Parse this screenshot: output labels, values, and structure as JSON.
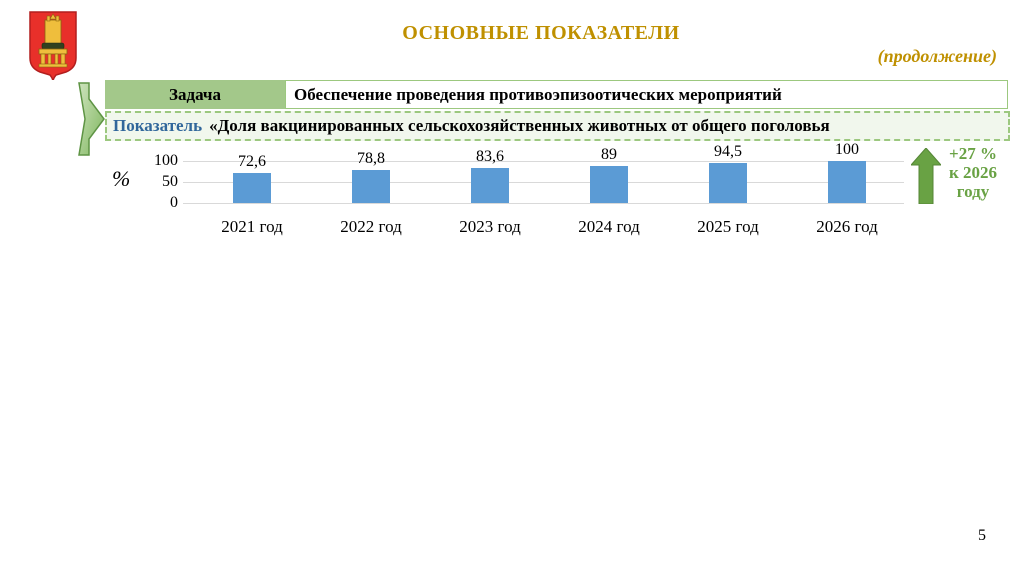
{
  "slide": {
    "title": "ОСНОВНЫЕ ПОКАЗАТЕЛИ",
    "subtitle": "(продолжение)",
    "page_number": "5"
  },
  "table": {
    "task_label": "Задача",
    "task_value": "Обеспечение проведения противоэпизоотических мероприятий",
    "indicator_label": "Показатель",
    "indicator_value": "«Доля вакцинированных сельскохозяйственных животных от общего поголовья"
  },
  "chart_data": {
    "type": "bar",
    "title": "",
    "categories": [
      "2021 год",
      "2022 год",
      "2023 год",
      "2024 год",
      "2025 год",
      "2026 год"
    ],
    "values": [
      72.6,
      78.8,
      83.6,
      89,
      94.5,
      100
    ],
    "value_labels": [
      "72,6",
      "78,8",
      "83,6",
      "89",
      "94,5",
      "100"
    ],
    "xlabel": "",
    "ylabel": "%",
    "ylim": [
      0,
      100
    ],
    "yticks": [
      100,
      50,
      0
    ],
    "ytick_labels": [
      "100",
      "50",
      "0"
    ],
    "grid": true,
    "legend": "none",
    "bar_color": "#5B9BD5"
  },
  "annotation": {
    "text": "+27 % к 2026 году",
    "lines": [
      "+27 %",
      "к 2026",
      "году"
    ],
    "color": "#69A244"
  },
  "colors": {
    "title_gold": "#BF9000",
    "table_header_green": "#A3C88A",
    "table_border_green": "#9CC87F",
    "indicator_bg": "#F1F7ED",
    "indicator_label_blue": "#31679B",
    "bar_blue": "#5B9BD5",
    "arrow_green": "#69A244",
    "gridline_gray": "#D9D9D9",
    "emblem_red": "#E8302A",
    "emblem_gold": "#EFBE3C"
  }
}
